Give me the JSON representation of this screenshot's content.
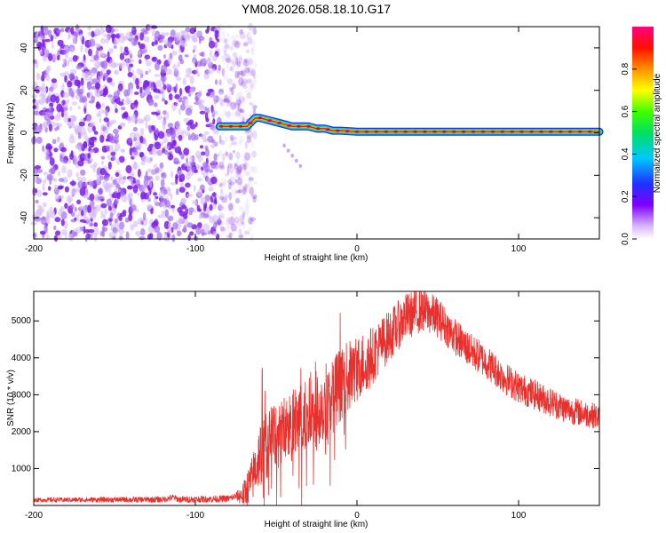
{
  "title": "YM08.2026.058.18.10.G17",
  "chart_data": [
    {
      "type": "heatmap",
      "title": "YM08.2026.058.18.10.G17",
      "xlabel": "Height of straight line (km)",
      "ylabel": "Frequency (Hz)",
      "xlim": [
        -200,
        150
      ],
      "ylim": [
        -50,
        50
      ],
      "xticks": [
        -200,
        -100,
        0,
        100
      ],
      "yticks": [
        -40,
        -20,
        0,
        20,
        40
      ],
      "xtick_labels": [
        "-200",
        "-100",
        "0",
        "100"
      ],
      "ytick_labels": [
        "-40",
        "-20",
        "0",
        "20",
        "40"
      ],
      "colorbar": {
        "label": "Normalized spectral amplitude",
        "range": [
          0,
          1
        ],
        "ticks": [
          0.0,
          0.2,
          0.4,
          0.6,
          0.8
        ],
        "tick_labels": [
          "0.0",
          "0.2",
          "0.4",
          "0.6",
          "0.8"
        ]
      },
      "noise_region_x": [
        -200,
        -75
      ],
      "ridge": {
        "x": [
          -85,
          -75,
          -68,
          -63,
          -60,
          -55,
          -50,
          -45,
          -40,
          -35,
          -30,
          -25,
          -20,
          -15,
          -10,
          0,
          20,
          50,
          100,
          150
        ],
        "y": [
          3,
          3,
          3,
          7,
          7,
          6,
          5,
          4,
          3,
          3,
          3,
          2,
          2,
          1,
          1,
          0.5,
          0.5,
          0.5,
          0.5,
          0.5
        ]
      }
    },
    {
      "type": "line",
      "xlabel": "Height of straight line (km)",
      "ylabel": "SNR (10 * v/v)",
      "xlim": [
        -200,
        150
      ],
      "ylim": [
        0,
        5800
      ],
      "xticks": [
        -200,
        -100,
        0,
        100
      ],
      "yticks": [
        1000,
        2000,
        3000,
        4000,
        5000
      ],
      "xtick_labels": [
        "-200",
        "-100",
        "0",
        "100"
      ],
      "ytick_labels": [
        "1000",
        "2000",
        "3000",
        "4000",
        "5000"
      ],
      "line_color": "#e8302d",
      "envelope": {
        "x": [
          -200,
          -120,
          -114,
          -110,
          -80,
          -70,
          -65,
          -60,
          -55,
          -50,
          -45,
          -40,
          -35,
          -30,
          -25,
          -20,
          -15,
          -10,
          -5,
          0,
          10,
          20,
          30,
          40,
          50,
          60,
          70,
          80,
          90,
          100,
          110,
          120,
          130,
          140,
          150
        ],
        "y": [
          150,
          160,
          220,
          160,
          180,
          300,
          700,
          1400,
          1700,
          1900,
          2000,
          2100,
          2300,
          2400,
          2600,
          2800,
          3000,
          3300,
          3500,
          3700,
          4100,
          4600,
          5100,
          5300,
          5100,
          4600,
          4200,
          3900,
          3500,
          3200,
          3000,
          2800,
          2600,
          2500,
          2400
        ]
      },
      "noise_amplitude": {
        "x": [
          -200,
          -75,
          -60,
          -20,
          20,
          60,
          150
        ],
        "y": [
          60,
          100,
          900,
          1100,
          700,
          500,
          350
        ]
      }
    }
  ]
}
